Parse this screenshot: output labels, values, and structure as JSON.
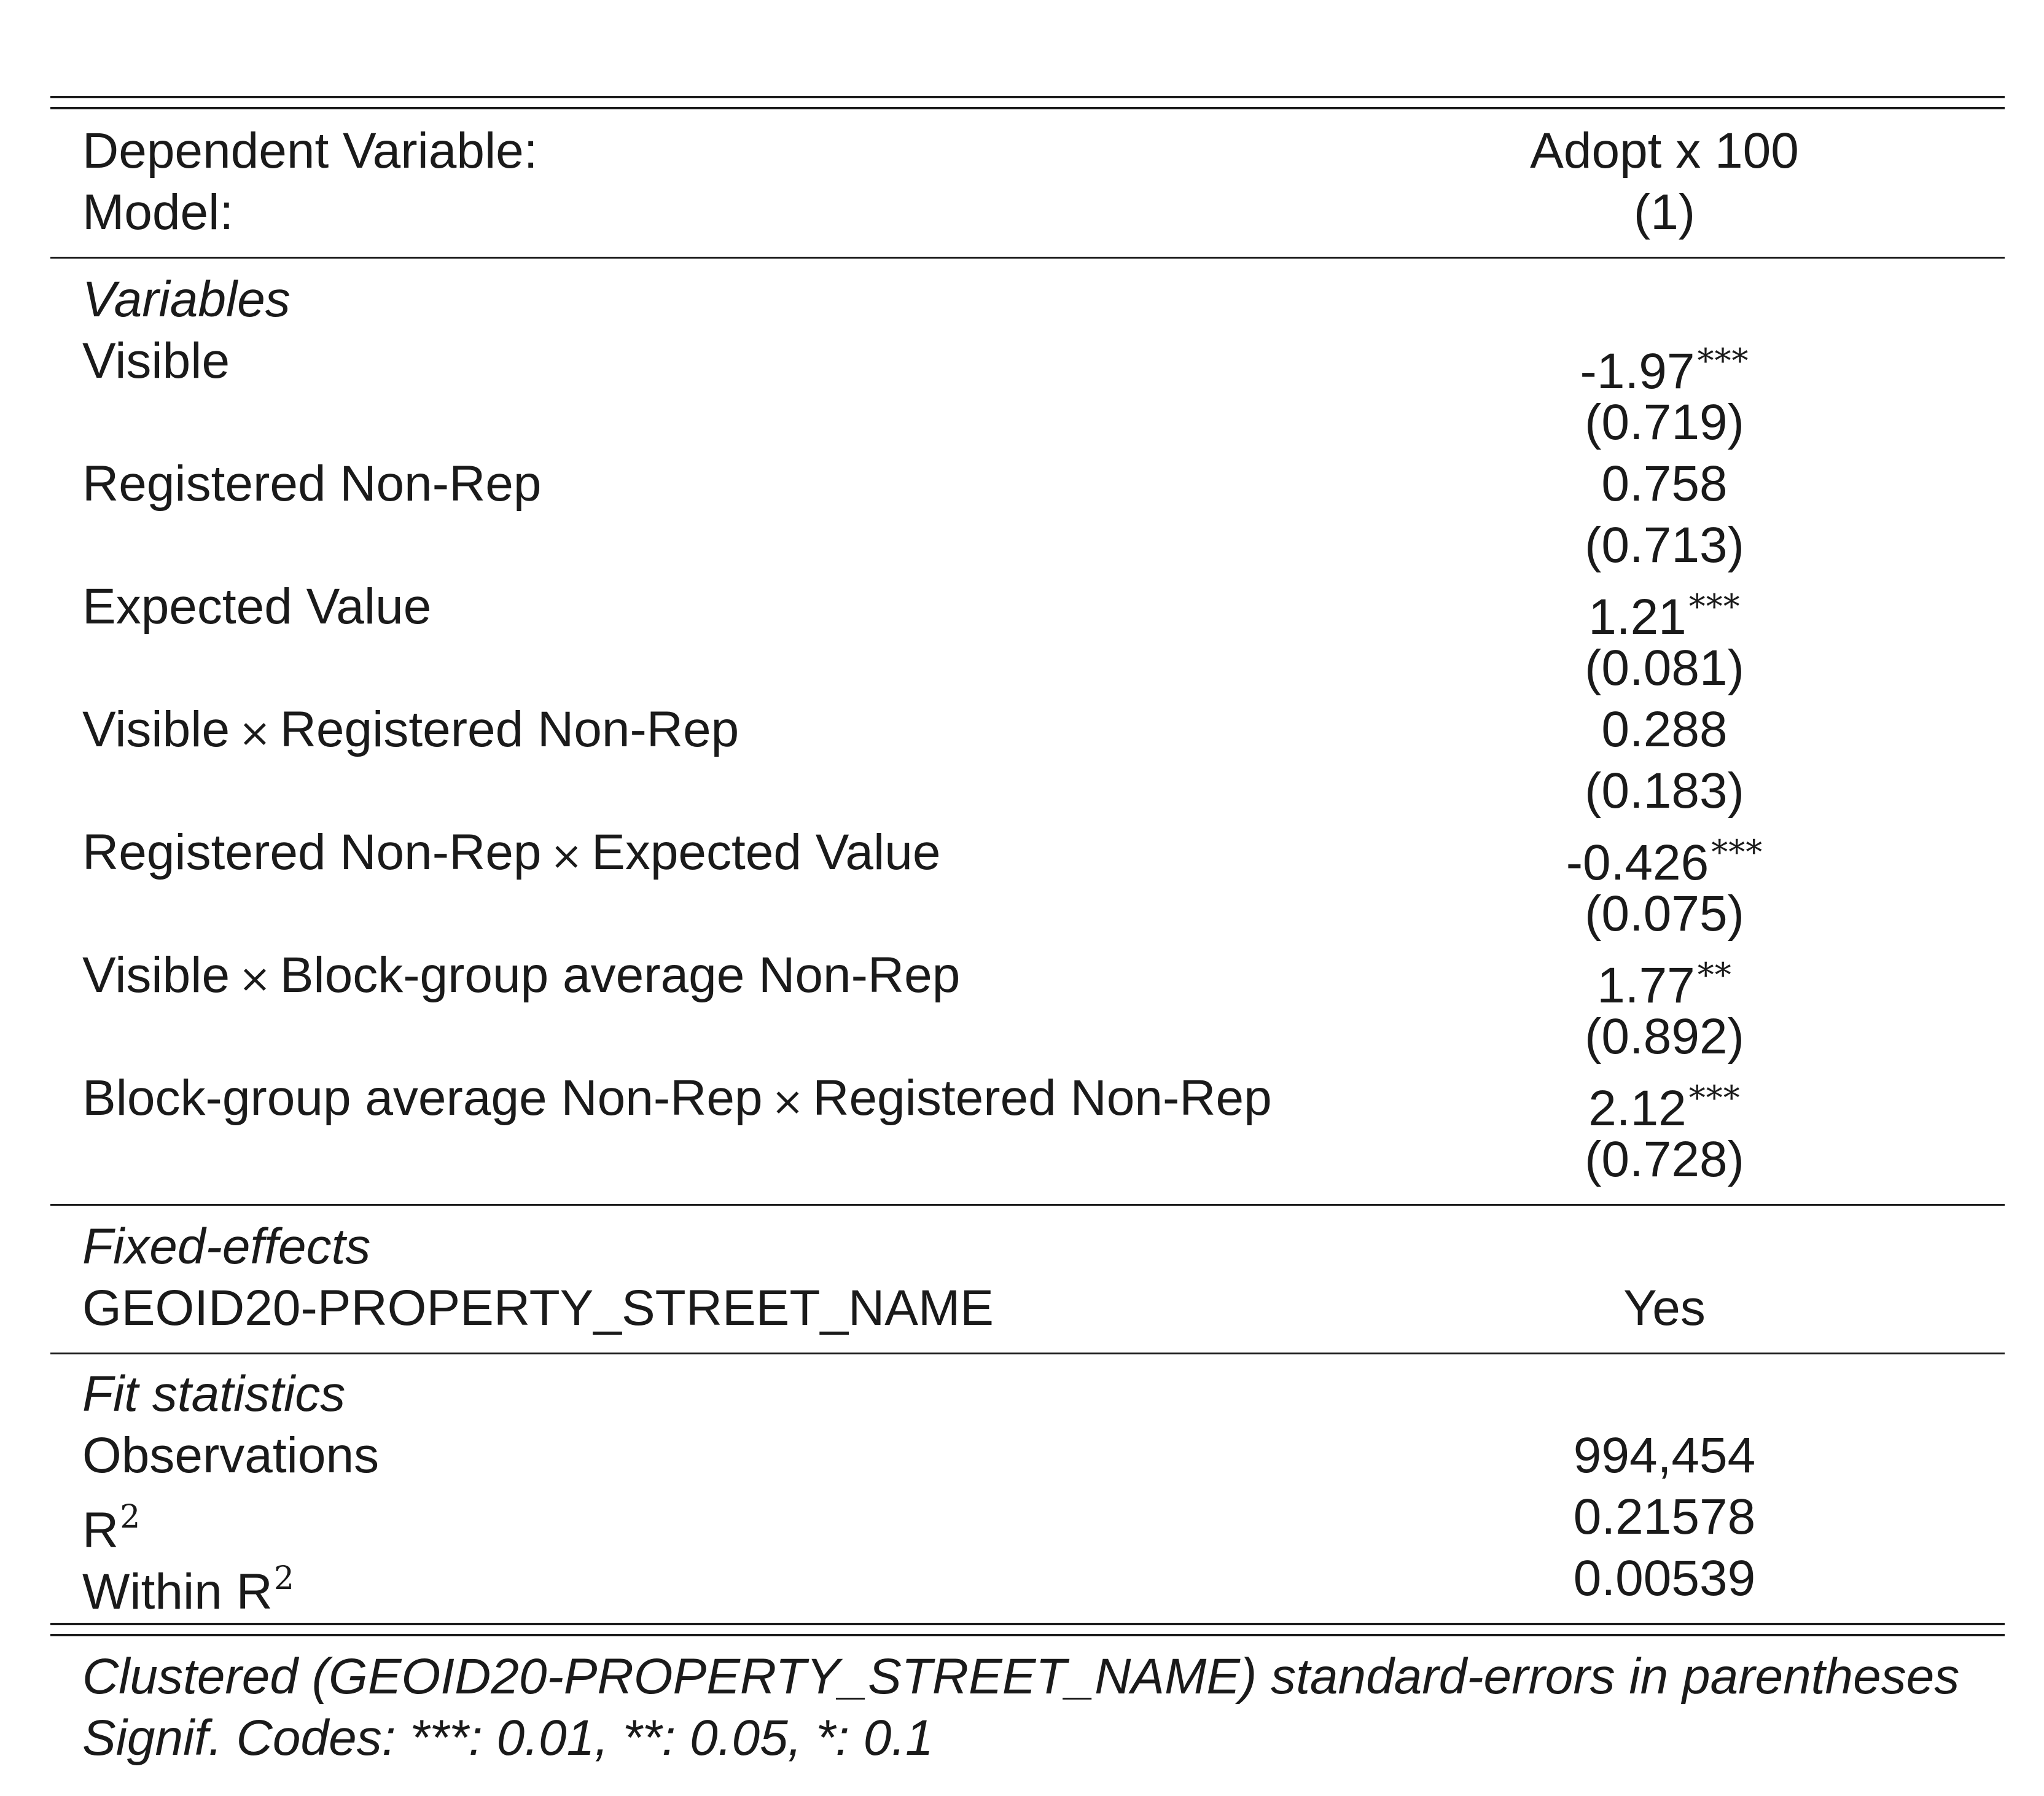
{
  "header": {
    "dep_var_label": "Dependent Variable:",
    "dep_var_value": "Adopt x 100",
    "model_label": "Model:",
    "model_value": "(1)"
  },
  "sections": {
    "variables": "Variables",
    "fixed_effects": "Fixed-effects",
    "fit_statistics": "Fit statistics"
  },
  "variables": [
    {
      "label_parts": [
        "Visible"
      ],
      "coef": "-1.97",
      "stars": "***",
      "se": "(0.719)"
    },
    {
      "label_parts": [
        "Registered Non-Rep"
      ],
      "coef": "0.758",
      "stars": "",
      "se": "(0.713)"
    },
    {
      "label_parts": [
        "Expected Value"
      ],
      "coef": "1.21",
      "stars": "***",
      "se": "(0.081)"
    },
    {
      "label_parts": [
        "Visible",
        "Registered Non-Rep"
      ],
      "coef": "0.288",
      "stars": "",
      "se": "(0.183)"
    },
    {
      "label_parts": [
        "Registered Non-Rep",
        "Expected Value"
      ],
      "coef": "-0.426",
      "stars": "***",
      "se": "(0.075)"
    },
    {
      "label_parts": [
        "Visible",
        "Block-group average Non-Rep"
      ],
      "coef": "1.77",
      "stars": "**",
      "se": "(0.892)"
    },
    {
      "label_parts": [
        "Block-group average Non-Rep",
        "Registered Non-Rep"
      ],
      "coef": "2.12",
      "stars": "***",
      "se": "(0.728)"
    }
  ],
  "interaction_symbol": "×",
  "fixed_effects": {
    "label": "GEOID20-PROPERTY_STREET_NAME",
    "value": "Yes"
  },
  "fit_statistics": {
    "observations_label": "Observations",
    "observations_value": "994,454",
    "r2_label": "R",
    "r2_sup": "2",
    "r2_value": "0.21578",
    "within_r2_label": "Within R",
    "within_r2_sup": "2",
    "within_r2_value": "0.00539"
  },
  "notes": {
    "line1": "Clustered (GEOID20-PROPERTY_STREET_NAME) standard-errors in parentheses",
    "line2": "Signif. Codes: ***: 0.01, **: 0.05, *: 0.1"
  }
}
